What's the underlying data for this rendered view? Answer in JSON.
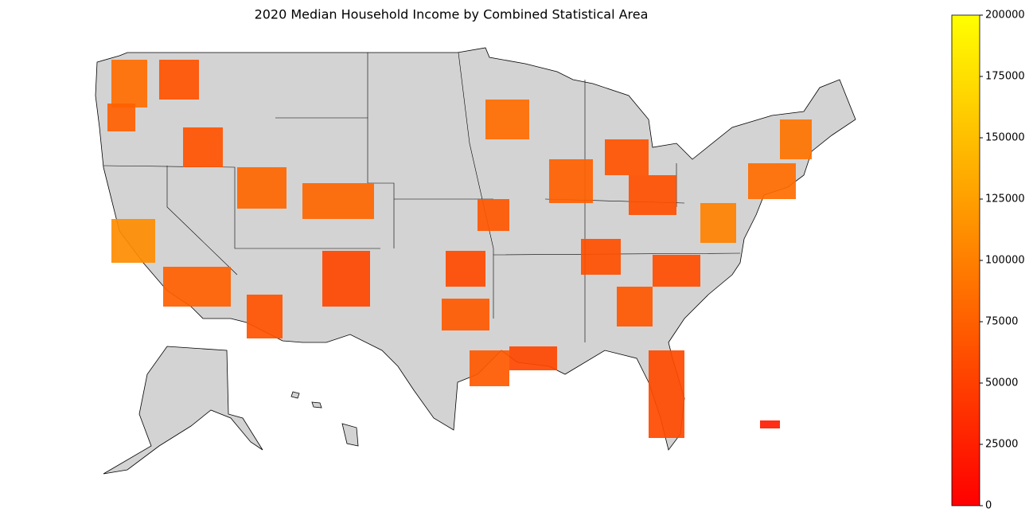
{
  "chart_data": {
    "type": "choropleth",
    "title": "2020 Median Household Income by Combined Statistical Area",
    "values": [
      85000,
      75000,
      65000,
      65000,
      80000,
      80000,
      110000,
      75000,
      65000,
      70000,
      70000,
      85000,
      75000,
      65000,
      62000,
      85000,
      90000,
      100000,
      68000,
      58000,
      60000,
      68000,
      55000,
      62000,
      55000,
      58000,
      22000
    ],
    "colormap": [
      "#ff0000",
      "#ffff00"
    ],
    "clim": [
      0,
      200000
    ],
    "cticks": [
      0,
      25000,
      50000,
      75000,
      100000,
      125000,
      150000,
      175000,
      200000
    ]
  }
}
